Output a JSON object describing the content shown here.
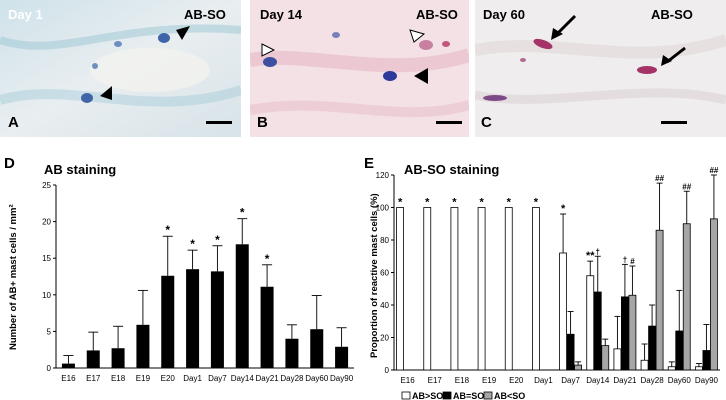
{
  "panels": {
    "A": {
      "letter": "A",
      "day": "Day 1",
      "stain": "AB-SO"
    },
    "B": {
      "letter": "B",
      "day": "Day 14",
      "stain": "AB-SO"
    },
    "C": {
      "letter": "C",
      "day": "Day 60",
      "stain": "AB-SO"
    }
  },
  "chart_data": [
    {
      "panel": "D",
      "type": "bar",
      "title": "AB staining",
      "ylabel": "Number of AB+ mast cells / mm²",
      "xlabel": "",
      "ylim": [
        0,
        25
      ],
      "yticks": [
        0,
        5,
        10,
        15,
        20,
        25
      ],
      "categories": [
        "E16",
        "E17",
        "E18",
        "E19",
        "E20",
        "Day1",
        "Day7",
        "Day14",
        "Day21",
        "Day28",
        "Day60",
        "Day90"
      ],
      "values": [
        0.6,
        2.4,
        2.7,
        5.9,
        12.6,
        13.5,
        13.2,
        16.9,
        11.1,
        4.0,
        5.3,
        2.9
      ],
      "errors": [
        1.1,
        2.5,
        3.0,
        4.7,
        5.4,
        2.6,
        3.5,
        3.5,
        3.0,
        1.9,
        4.6,
        2.6
      ],
      "annotations": [
        "",
        "",
        "",
        "",
        "*",
        "*",
        "*",
        "*",
        "*",
        "",
        "",
        ""
      ],
      "bar_color": "#000000",
      "grid": false
    },
    {
      "panel": "E",
      "type": "bar",
      "title": "AB-SO staining",
      "ylabel": "Proportion of reactive mast cells (%)",
      "xlabel": "",
      "ylim": [
        0,
        120
      ],
      "yticks": [
        0,
        20,
        40,
        60,
        80,
        100,
        120
      ],
      "categories": [
        "E16",
        "E17",
        "E18",
        "E19",
        "E20",
        "Day1",
        "Day7",
        "Day14",
        "Day21",
        "Day28",
        "Day60",
        "Day90"
      ],
      "series": [
        {
          "name": "AB>SO",
          "color": "#ffffff",
          "values": [
            100,
            100,
            100,
            100,
            100,
            100,
            72,
            58,
            13,
            6,
            2,
            2
          ],
          "errors": [
            0,
            0,
            0,
            0,
            0,
            0,
            24,
            9,
            20,
            10,
            3,
            2
          ],
          "annotations": [
            "*",
            "*",
            "*",
            "*",
            "*",
            "*",
            "*",
            "**",
            "",
            "",
            "",
            ""
          ]
        },
        {
          "name": "AB=SO",
          "color": "#000000",
          "values": [
            0,
            0,
            0,
            0,
            0,
            0,
            22,
            48,
            45,
            27,
            24,
            12
          ],
          "errors": [
            0,
            0,
            0,
            0,
            0,
            0,
            14,
            22,
            20,
            13,
            25,
            16
          ],
          "annotations": [
            "",
            "",
            "",
            "",
            "",
            "",
            "",
            "†",
            "†",
            "",
            "",
            ""
          ]
        },
        {
          "name": "AB<SO",
          "color": "#a6a6a6",
          "values": [
            0,
            0,
            0,
            0,
            0,
            0,
            3,
            15,
            46,
            86,
            90,
            93
          ],
          "errors": [
            0,
            0,
            0,
            0,
            0,
            0,
            2,
            4,
            18,
            29,
            20,
            27
          ],
          "annotations": [
            "",
            "",
            "",
            "",
            "",
            "",
            "",
            "",
            "#",
            "##",
            "##",
            "##"
          ]
        }
      ],
      "legend_position": "bottom-left",
      "grid": false
    }
  ]
}
